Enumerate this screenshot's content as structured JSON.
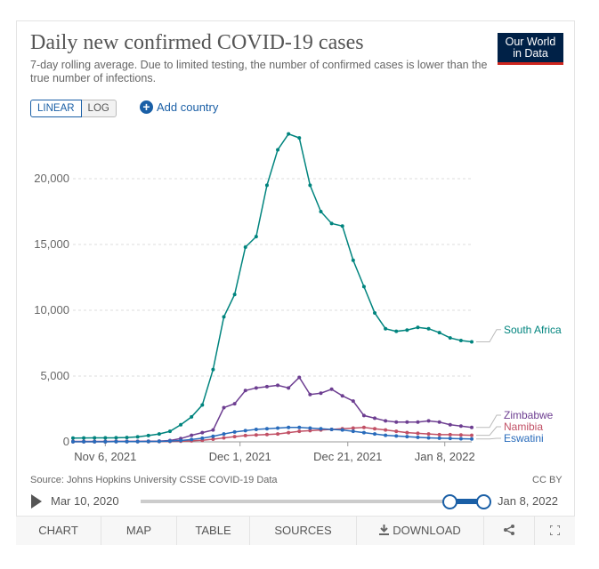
{
  "header": {
    "title": "Daily new confirmed COVID-19 cases",
    "subtitle": "7-day rolling average. Due to limited testing, the number of confirmed cases is lower than the true number of infections.",
    "logo_line1": "Our World",
    "logo_line2": "in Data"
  },
  "controls": {
    "scale_linear": "LINEAR",
    "scale_log": "LOG",
    "selected_scale": "LINEAR",
    "add_country": "Add country"
  },
  "chart_data": {
    "type": "line",
    "title": "Daily new confirmed COVID-19 cases",
    "xlabel": "",
    "ylabel": "",
    "ylim": [
      0,
      25000
    ],
    "yticks": [
      0,
      5000,
      10000,
      15000,
      20000
    ],
    "ytick_labels": [
      "0",
      "5,000",
      "10,000",
      "15,000",
      "20,000"
    ],
    "xlim": [
      "2021-10-31",
      "2022-01-13"
    ],
    "xticks": [
      "2021-11-06",
      "2021-12-01",
      "2021-12-21",
      "2022-01-08"
    ],
    "xtick_labels": [
      "Nov 6, 2021",
      "Dec 1, 2021",
      "Dec 21, 2021",
      "Jan 8, 2022"
    ],
    "grid": true,
    "x": [
      "2021-10-31",
      "2021-11-02",
      "2021-11-04",
      "2021-11-06",
      "2021-11-08",
      "2021-11-10",
      "2021-11-12",
      "2021-11-14",
      "2021-11-16",
      "2021-11-18",
      "2021-11-20",
      "2021-11-22",
      "2021-11-24",
      "2021-11-26",
      "2021-11-28",
      "2021-11-30",
      "2021-12-02",
      "2021-12-04",
      "2021-12-06",
      "2021-12-08",
      "2021-12-10",
      "2021-12-12",
      "2021-12-14",
      "2021-12-16",
      "2021-12-18",
      "2021-12-20",
      "2021-12-22",
      "2021-12-24",
      "2021-12-26",
      "2021-12-28",
      "2021-12-30",
      "2022-01-01",
      "2022-01-03",
      "2022-01-05",
      "2022-01-07",
      "2022-01-09",
      "2022-01-11",
      "2022-01-13"
    ],
    "series": [
      {
        "name": "South Africa",
        "color": "#00847e",
        "values": [
          290,
          295,
          300,
          300,
          310,
          330,
          380,
          480,
          600,
          800,
          1300,
          1900,
          2800,
          5500,
          9500,
          11200,
          14800,
          15600,
          19500,
          22200,
          23400,
          23100,
          19500,
          17500,
          16600,
          16400,
          13800,
          11800,
          9800,
          8600,
          8400,
          8500,
          8700,
          8600,
          8300,
          7900,
          7700,
          7600
        ]
      },
      {
        "name": "Zimbabwe",
        "color": "#6d3e91",
        "values": [
          30,
          30,
          35,
          35,
          40,
          40,
          45,
          50,
          60,
          100,
          250,
          500,
          700,
          900,
          2600,
          2900,
          3900,
          4100,
          4200,
          4300,
          4100,
          4900,
          3600,
          3700,
          4000,
          3500,
          3100,
          2000,
          1800,
          1600,
          1500,
          1500,
          1500,
          1600,
          1500,
          1300,
          1200,
          1100
        ]
      },
      {
        "name": "Namibia",
        "color": "#c15065",
        "values": [
          10,
          10,
          12,
          12,
          15,
          15,
          18,
          20,
          25,
          35,
          50,
          80,
          120,
          200,
          300,
          400,
          480,
          520,
          560,
          600,
          700,
          800,
          850,
          900,
          950,
          1000,
          1050,
          1100,
          1000,
          900,
          800,
          700,
          650,
          600,
          550,
          550,
          520,
          500
        ]
      },
      {
        "name": "Eswatini",
        "color": "#286bbb",
        "values": [
          10,
          10,
          12,
          12,
          15,
          18,
          20,
          25,
          35,
          60,
          100,
          180,
          280,
          420,
          600,
          750,
          850,
          950,
          1000,
          1050,
          1100,
          1100,
          1050,
          1000,
          950,
          900,
          800,
          700,
          600,
          500,
          450,
          400,
          350,
          300,
          280,
          260,
          240,
          220
        ]
      }
    ]
  },
  "footer": {
    "source": "Source: Johns Hopkins University CSSE COVID-19 Data",
    "license": "CC BY",
    "timeline_start": "Mar 10, 2020",
    "timeline_end": "Jan 8, 2022"
  },
  "tabs": [
    {
      "label": "CHART",
      "icon": ""
    },
    {
      "label": "MAP",
      "icon": ""
    },
    {
      "label": "TABLE",
      "icon": ""
    },
    {
      "label": "SOURCES",
      "icon": ""
    },
    {
      "label": "DOWNLOAD",
      "icon": "download-icon"
    },
    {
      "label": "",
      "icon": "share-icon"
    },
    {
      "label": "",
      "icon": "fullscreen-icon"
    }
  ],
  "active_tab": "CHART"
}
